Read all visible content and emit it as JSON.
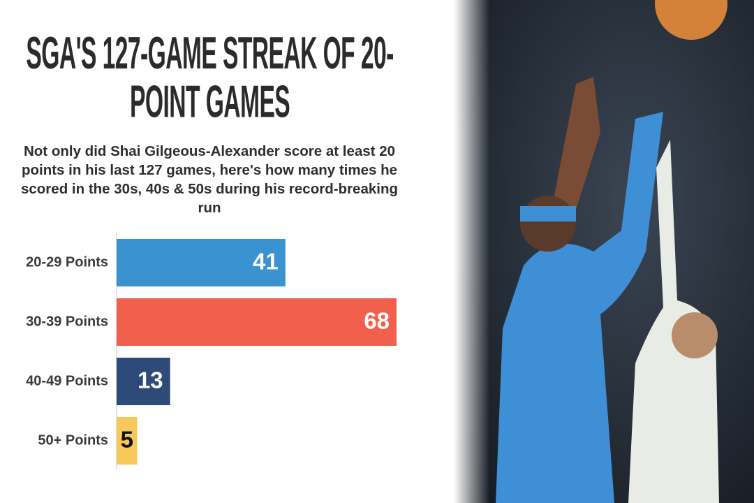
{
  "chart_data": {
    "type": "bar",
    "orientation": "horizontal",
    "title": "SGA'S 127-GAME STREAK OF 20-POINT GAMES",
    "subtitle": "Not only did Shai Gilgeous-Alexander score at least 20 points in his last 127 games, here's how many times he scored in the 30s, 40s & 50s during his record-breaking run",
    "categories": [
      "20-29 Points",
      "30-39 Points",
      "40-49 Points",
      "50+ Points"
    ],
    "values": [
      41,
      68,
      13,
      5
    ],
    "colors": [
      "#3a93d0",
      "#f0604d",
      "#2e4a78",
      "#f9c85a"
    ]
  }
}
